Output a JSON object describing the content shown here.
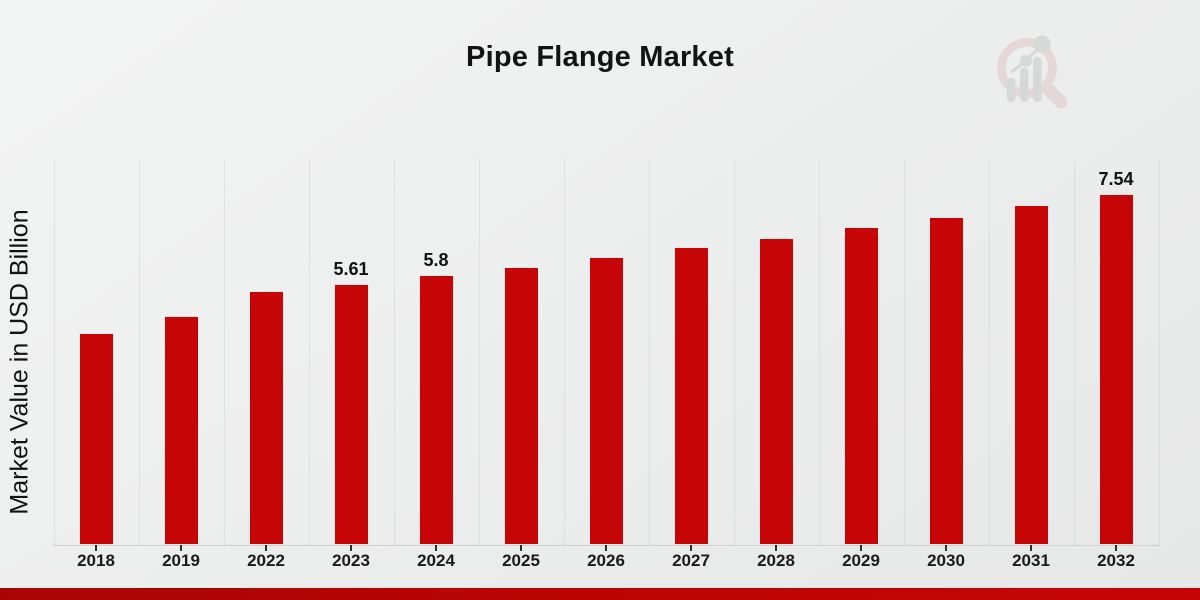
{
  "header": {
    "title": "Pipe Flange Market"
  },
  "y_axis": {
    "label": "Market Value in USD Billion"
  },
  "watermark": {
    "icon": "magnifier-bar-chart-logo"
  },
  "colors": {
    "bar": "#c60606",
    "footer_accent_left": "#a90404",
    "footer_accent_right": "#c50505",
    "text": "#131313",
    "gridline": "#d0d1d1"
  },
  "chart_data": {
    "type": "bar",
    "title": "Pipe Flange Market",
    "xlabel": "",
    "ylabel": "Market Value in USD Billion",
    "categories": [
      "2018",
      "2019",
      "2022",
      "2023",
      "2024",
      "2025",
      "2026",
      "2027",
      "2028",
      "2029",
      "2030",
      "2031",
      "2032"
    ],
    "values": [
      4.56,
      4.92,
      5.46,
      5.61,
      5.8,
      5.98,
      6.19,
      6.41,
      6.6,
      6.84,
      7.06,
      7.32,
      7.54
    ],
    "data_labels": {
      "2023": "5.61",
      "2024": "5.8",
      "2032": "7.54"
    },
    "ylim": [
      0,
      8.3
    ],
    "grid": "vertical-dotted-between-categories",
    "legend_position": "none",
    "bar_color": "#c60606"
  }
}
